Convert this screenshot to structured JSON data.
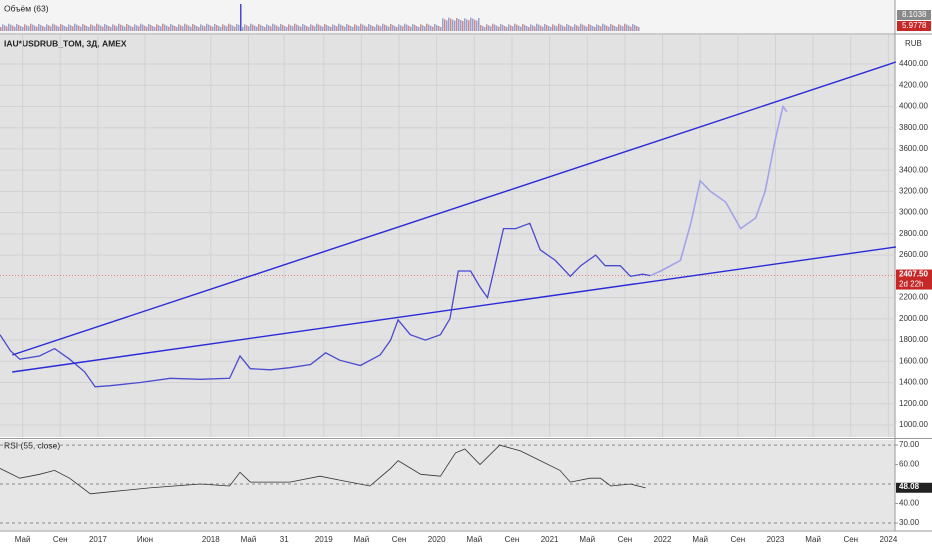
{
  "volume_pane": {
    "title": "Объём (63)",
    "labels": [
      "8.1038",
      "5.9778"
    ]
  },
  "chart_data": [
    {
      "type": "line",
      "title": "IAU*USDRUB_TOM, 3Д, AMEX",
      "y_unit": "RUB",
      "xlim": [
        1.6,
        96.7
      ],
      "ylim": [
        887,
        4673
      ],
      "grid": true,
      "xticks": [
        {
          "value": 4,
          "label": "Май"
        },
        {
          "value": 8,
          "label": "Сен"
        },
        {
          "value": 12,
          "label": "2017"
        },
        {
          "value": 17,
          "label": "Июн"
        },
        {
          "value": 24,
          "label": "2018"
        },
        {
          "value": 28,
          "label": "Май"
        },
        {
          "value": 31.8,
          "label": "31"
        },
        {
          "value": 36,
          "label": "2019"
        },
        {
          "value": 40,
          "label": "Май"
        },
        {
          "value": 44,
          "label": "Сен"
        },
        {
          "value": 48,
          "label": "2020"
        },
        {
          "value": 52,
          "label": "Май"
        },
        {
          "value": 56,
          "label": "Сен"
        },
        {
          "value": 60,
          "label": "2021"
        },
        {
          "value": 64,
          "label": "Май"
        },
        {
          "value": 68,
          "label": "Сен"
        },
        {
          "value": 72,
          "label": "2022"
        },
        {
          "value": 76,
          "label": "Май"
        },
        {
          "value": 80,
          "label": "Сен"
        },
        {
          "value": 84,
          "label": "2023"
        },
        {
          "value": 88,
          "label": "Май"
        },
        {
          "value": 92,
          "label": "Сен"
        },
        {
          "value": 96,
          "label": "2024"
        }
      ],
      "yticks": [
        {
          "value": 1000,
          "label": "1000.00"
        },
        {
          "value": 1200,
          "label": "1200.00"
        },
        {
          "value": 1400,
          "label": "1400.00"
        },
        {
          "value": 1600,
          "label": "1600.00"
        },
        {
          "value": 1800,
          "label": "1800.00"
        },
        {
          "value": 2000,
          "label": "2000.00"
        },
        {
          "value": 2200,
          "label": "2200.00"
        },
        {
          "value": 2600,
          "label": "2600.00"
        },
        {
          "value": 2800,
          "label": "2800.00"
        },
        {
          "value": 3000,
          "label": "3000.00"
        },
        {
          "value": 3200,
          "label": "3200.00"
        },
        {
          "value": 3400,
          "label": "3400.00"
        },
        {
          "value": 3600,
          "label": "3600.00"
        },
        {
          "value": 3800,
          "label": "3800.00"
        },
        {
          "value": 4000,
          "label": "4000.00"
        },
        {
          "value": 4200,
          "label": "4200.00"
        },
        {
          "value": 4400,
          "label": "4400.00"
        }
      ],
      "last": {
        "value": 2407.5,
        "label": "2407.50",
        "countdown": "2d 22h"
      },
      "series": [
        {
          "color": "#4a4ad0",
          "width": 1.3,
          "x": [
            1.6,
            2.7,
            3.7,
            5.8,
            7.4,
            9.0,
            10.6,
            11.7,
            13.3,
            16.5,
            19.7,
            22.9,
            26.0,
            27.1,
            28.2,
            30.3,
            32.4,
            34.6,
            36.2,
            37.7,
            39.9,
            42.0,
            43.1,
            43.9,
            45.2,
            46.8,
            48.4,
            49.4,
            50.3,
            51.6,
            52.6,
            53.4,
            54.2,
            55.1,
            56.4,
            57.9,
            59.0,
            60.6,
            62.2,
            63.3,
            64.9,
            65.9,
            67.5,
            68.6,
            69.9,
            70.7
          ],
          "values": [
            1850,
            1700,
            1620,
            1650,
            1720,
            1620,
            1500,
            1360,
            1370,
            1400,
            1440,
            1430,
            1440,
            1650,
            1530,
            1520,
            1540,
            1570,
            1680,
            1610,
            1560,
            1660,
            1800,
            1990,
            1850,
            1800,
            1850,
            2000,
            2450,
            2450,
            2300,
            2200,
            2500,
            2850,
            2850,
            2900,
            2650,
            2550,
            2400,
            2500,
            2600,
            2500,
            2500,
            2400,
            2420,
            2407
          ]
        },
        {
          "color": "#a3a3ea",
          "width": 1.6,
          "x": [
            70.7,
            71.8,
            73.9,
            75.0,
            76.0,
            77.1,
            78.7,
            80.3,
            81.9,
            82.9,
            84.0,
            84.8,
            85.2
          ],
          "values": [
            2407,
            2450,
            2550,
            2900,
            3300,
            3200,
            3100,
            2850,
            2950,
            3200,
            3700,
            4000,
            3950
          ]
        },
        {
          "color": "#2a2ad8",
          "width": 1.4,
          "x": [
            2.9,
            96.8
          ],
          "values": [
            1659,
            4419
          ]
        },
        {
          "color": "#2a2ad8",
          "width": 1.4,
          "x": [
            2.9,
            96.8
          ],
          "values": [
            1499,
            2676
          ]
        }
      ]
    },
    {
      "type": "line",
      "title": "RSI (55, close)",
      "xlim": [
        1.6,
        96.7
      ],
      "ylim": [
        26.4,
        72.6
      ],
      "yticks": [
        {
          "value": 70,
          "label": "70.00"
        },
        {
          "value": 60,
          "label": "60.00"
        },
        {
          "value": 40,
          "label": "40.00"
        },
        {
          "value": 30,
          "label": "30.00"
        }
      ],
      "bands": [
        70,
        50,
        30
      ],
      "last": {
        "value": 48.08,
        "label": "48.08"
      },
      "series": [
        {
          "color": "#333333",
          "width": 0.8,
          "x": [
            1.6,
            3.7,
            5.8,
            7.4,
            9.0,
            11.2,
            13.3,
            17.5,
            22.9,
            26.0,
            27.1,
            28.2,
            32.4,
            35.6,
            37.7,
            40.9,
            43.1,
            43.9,
            46.3,
            48.4,
            50.0,
            51.0,
            52.6,
            54.7,
            56.9,
            59.0,
            61.1,
            62.2,
            64.3,
            65.4,
            66.5,
            68.6,
            70.2
          ],
          "values": [
            58,
            53,
            55,
            57,
            53,
            45,
            46,
            48,
            50,
            49,
            56,
            51,
            51,
            54,
            52,
            49,
            58,
            62,
            55,
            54,
            66,
            68,
            60,
            70,
            67,
            62,
            57,
            51,
            53,
            53,
            49,
            50,
            48
          ]
        }
      ]
    }
  ]
}
